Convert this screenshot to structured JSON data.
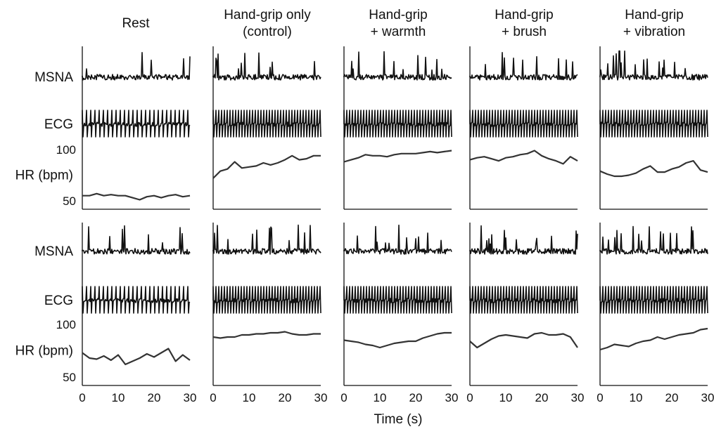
{
  "chart_data": {
    "type": "line",
    "columns": [
      "Rest",
      "Hand-grip only (control)",
      "Hand-grip + warmth",
      "Hand-grip + brush",
      "Hand-grip + vibration"
    ],
    "column_titles": [
      [
        "Rest"
      ],
      [
        "Hand-grip only",
        "(control)"
      ],
      [
        "Hand-grip",
        "+ warmth"
      ],
      [
        "Hand-grip",
        "+ brush"
      ],
      [
        "Hand-grip",
        "+ vibration"
      ]
    ],
    "trace_labels": [
      "MSNA",
      "ECG",
      "HR (bpm)"
    ],
    "hr_ticks": [
      "100",
      "50"
    ],
    "hr_ylim": [
      50,
      100
    ],
    "x_ticks": [
      "0",
      "10",
      "20",
      "30"
    ],
    "xlim": [
      0,
      30
    ],
    "xlabel": "Time (s)",
    "rows": [
      {
        "hr_series": [
          {
            "x": [
              0,
              2,
              4,
              6,
              8,
              10,
              12,
              14,
              16,
              18,
              20,
              22,
              24,
              26,
              28,
              30
            ],
            "y": [
              55,
              55,
              57,
              55,
              56,
              55,
              55,
              53,
              51,
              54,
              55,
              53,
              55,
              56,
              54,
              55
            ]
          },
          {
            "x": [
              0,
              2,
              4,
              6,
              8,
              10,
              12,
              14,
              16,
              18,
              20,
              22,
              24,
              26,
              28,
              30
            ],
            "y": [
              72,
              79,
              81,
              88,
              82,
              83,
              84,
              87,
              85,
              87,
              90,
              94,
              90,
              91,
              94,
              94
            ]
          },
          {
            "x": [
              0,
              2,
              4,
              6,
              8,
              10,
              12,
              14,
              16,
              18,
              20,
              22,
              24,
              26,
              28,
              30
            ],
            "y": [
              88,
              90,
              92,
              95,
              94,
              94,
              93,
              95,
              96,
              96,
              96,
              97,
              98,
              97,
              98,
              99
            ]
          },
          {
            "x": [
              0,
              2,
              4,
              6,
              8,
              10,
              12,
              14,
              16,
              18,
              20,
              22,
              24,
              26,
              28,
              30
            ],
            "y": [
              90,
              92,
              93,
              91,
              89,
              92,
              93,
              95,
              96,
              99,
              94,
              91,
              89,
              86,
              93,
              89
            ]
          },
          {
            "x": [
              0,
              2,
              4,
              6,
              8,
              10,
              12,
              14,
              16,
              18,
              20,
              22,
              24,
              26,
              28,
              30
            ],
            "y": [
              79,
              76,
              74,
              74,
              75,
              77,
              81,
              84,
              78,
              78,
              81,
              83,
              87,
              89,
              80,
              78
            ]
          }
        ]
      },
      {
        "hr_series": [
          {
            "x": [
              0,
              2,
              4,
              6,
              8,
              10,
              12,
              14,
              16,
              18,
              20,
              22,
              24,
              26,
              28,
              30
            ],
            "y": [
              73,
              68,
              67,
              70,
              66,
              71,
              62,
              65,
              68,
              72,
              69,
              73,
              77,
              65,
              71,
              66
            ]
          },
          {
            "x": [
              0,
              2,
              4,
              6,
              8,
              10,
              12,
              14,
              16,
              18,
              20,
              22,
              24,
              26,
              28,
              30
            ],
            "y": [
              88,
              87,
              88,
              88,
              90,
              90,
              91,
              91,
              92,
              92,
              93,
              91,
              90,
              90,
              91,
              91
            ]
          },
          {
            "x": [
              0,
              2,
              4,
              6,
              8,
              10,
              12,
              14,
              16,
              18,
              20,
              22,
              24,
              26,
              28,
              30
            ],
            "y": [
              85,
              84,
              83,
              81,
              80,
              78,
              80,
              82,
              83,
              84,
              84,
              87,
              89,
              91,
              92,
              92
            ]
          },
          {
            "x": [
              0,
              2,
              4,
              6,
              8,
              10,
              12,
              14,
              16,
              18,
              20,
              22,
              24,
              26,
              28,
              30
            ],
            "y": [
              84,
              78,
              82,
              86,
              89,
              90,
              89,
              88,
              87,
              91,
              92,
              90,
              90,
              91,
              88,
              78
            ]
          },
          {
            "x": [
              0,
              2,
              4,
              6,
              8,
              10,
              12,
              14,
              16,
              18,
              20,
              22,
              24,
              26,
              28,
              30
            ],
            "y": [
              76,
              78,
              81,
              80,
              79,
              82,
              84,
              85,
              88,
              86,
              88,
              90,
              91,
              92,
              95,
              96
            ]
          }
        ]
      }
    ]
  }
}
